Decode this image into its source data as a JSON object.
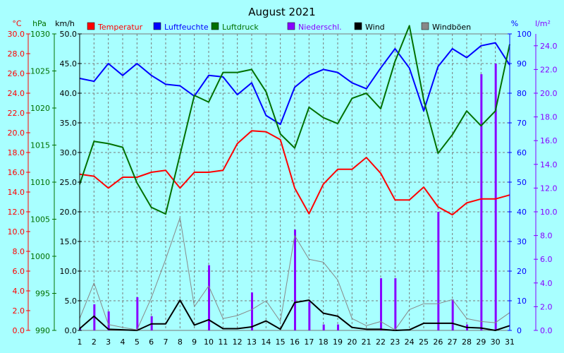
{
  "chart_data": {
    "type": "line",
    "title": "August 2021",
    "x": [
      1,
      2,
      3,
      4,
      5,
      6,
      7,
      8,
      9,
      10,
      11,
      12,
      13,
      14,
      15,
      16,
      17,
      18,
      19,
      20,
      21,
      22,
      23,
      24,
      25,
      26,
      27,
      28,
      29,
      30,
      31
    ],
    "axes": {
      "temperature": {
        "unit": "°C",
        "min": 0,
        "max": 30,
        "ticks": [
          "0.0",
          "2.0",
          "4.0",
          "6.0",
          "8.0",
          "10.0",
          "12.0",
          "14.0",
          "16.0",
          "18.0",
          "20.0",
          "22.0",
          "24.0",
          "26.0",
          "28.0",
          "30.0"
        ]
      },
      "pressure": {
        "unit": "hPa",
        "min": 990,
        "max": 1030,
        "ticks": [
          "990",
          "995",
          "1000",
          "1005",
          "1010",
          "1015",
          "1020",
          "1025",
          "1030"
        ]
      },
      "wind": {
        "unit": "km/h",
        "min": 0,
        "max": 50,
        "ticks": [
          "0.0",
          "5.0",
          "10.0",
          "15.0",
          "20.0",
          "25.0",
          "30.0",
          "35.0",
          "40.0",
          "45.0",
          "50.0"
        ]
      },
      "humidity": {
        "unit": "%",
        "min": 0,
        "max": 100,
        "ticks": [
          "0",
          "10",
          "20",
          "30",
          "40",
          "50",
          "60",
          "70",
          "80",
          "90",
          "100"
        ]
      },
      "precipitation": {
        "unit": "l/m²",
        "min": 0,
        "max": 25,
        "ticks": [
          "0.0",
          "2.0",
          "4.0",
          "6.0",
          "8.0",
          "10.0",
          "12.0",
          "14.0",
          "16.0",
          "18.0",
          "20.0",
          "22.0",
          "24.0"
        ]
      }
    },
    "series": [
      {
        "name": "Temperatur",
        "axis": "temperature",
        "kind": "line",
        "color": "#ff0000",
        "values": [
          15.8,
          15.6,
          14.4,
          15.5,
          15.5,
          16.0,
          16.2,
          14.4,
          16.0,
          16.0,
          16.2,
          18.9,
          20.2,
          20.1,
          19.3,
          14.4,
          11.8,
          14.8,
          16.3,
          16.3,
          17.5,
          15.9,
          13.2,
          13.2,
          14.5,
          12.5,
          11.7,
          12.9,
          13.3,
          13.3,
          13.7
        ]
      },
      {
        "name": "Luftfeuchte",
        "axis": "humidity",
        "kind": "line",
        "color": "#0000ff",
        "values": [
          85,
          84,
          90,
          86,
          90,
          86,
          83,
          82.5,
          79,
          86,
          85.5,
          79.5,
          83.5,
          72.5,
          69.5,
          82,
          86,
          88,
          87,
          83.5,
          81.5,
          88.5,
          95,
          88.5,
          74,
          89,
          95,
          92,
          96,
          97,
          89.5
        ]
      },
      {
        "name": "Luftdruck",
        "axis": "pressure",
        "kind": "line",
        "color": "#007000",
        "values": [
          1009.7,
          1015.5,
          1015.2,
          1014.7,
          1009.9,
          1006.6,
          1005.7,
          1013.7,
          1021.7,
          1020.8,
          1024.8,
          1024.8,
          1025.2,
          1022.2,
          1016.5,
          1014.6,
          1020.1,
          1018.7,
          1017.9,
          1021.3,
          1022.0,
          1019.9,
          1026.3,
          1031.1,
          1021.1,
          1013.9,
          1016.4,
          1019.6,
          1017.6,
          1019.6,
          1028.6
        ]
      },
      {
        "name": "Niederschl.",
        "axis": "precipitation",
        "kind": "bar",
        "color": "#8800ff",
        "values": [
          0.2,
          2.2,
          1.6,
          0,
          2.8,
          1.2,
          0,
          0,
          0,
          5.5,
          0,
          0,
          3.2,
          0,
          0,
          8.5,
          2.4,
          0.5,
          0.5,
          0,
          0,
          4.4,
          4.4,
          0,
          0,
          10,
          2.6,
          0.5,
          21.6,
          22.5,
          0
        ]
      },
      {
        "name": "Wind",
        "axis": "wind",
        "kind": "line",
        "color": "#000000",
        "values": [
          0.3,
          2.4,
          0.2,
          0.1,
          0,
          1.1,
          1.1,
          5.1,
          0.9,
          1.8,
          0.3,
          0.3,
          0.6,
          1.6,
          0.2,
          4.7,
          5.1,
          2.9,
          2.4,
          0.5,
          0.2,
          0.2,
          0,
          0.1,
          1.2,
          1.2,
          1.2,
          0.5,
          0.4,
          0,
          0.8
        ]
      },
      {
        "name": "Windböen",
        "axis": "wind",
        "kind": "line",
        "color": "#888888",
        "values": [
          2.0,
          8.0,
          1.0,
          0.5,
          0.1,
          5.5,
          12.0,
          19.0,
          4.0,
          7.5,
          2.0,
          2.5,
          3.5,
          5.0,
          1.5,
          16.0,
          12.0,
          11.5,
          8.5,
          2.0,
          0.8,
          1.5,
          0.1,
          3.5,
          4.5,
          4.5,
          5.2,
          2.0,
          1.5,
          1.3,
          3.0
        ]
      }
    ]
  }
}
